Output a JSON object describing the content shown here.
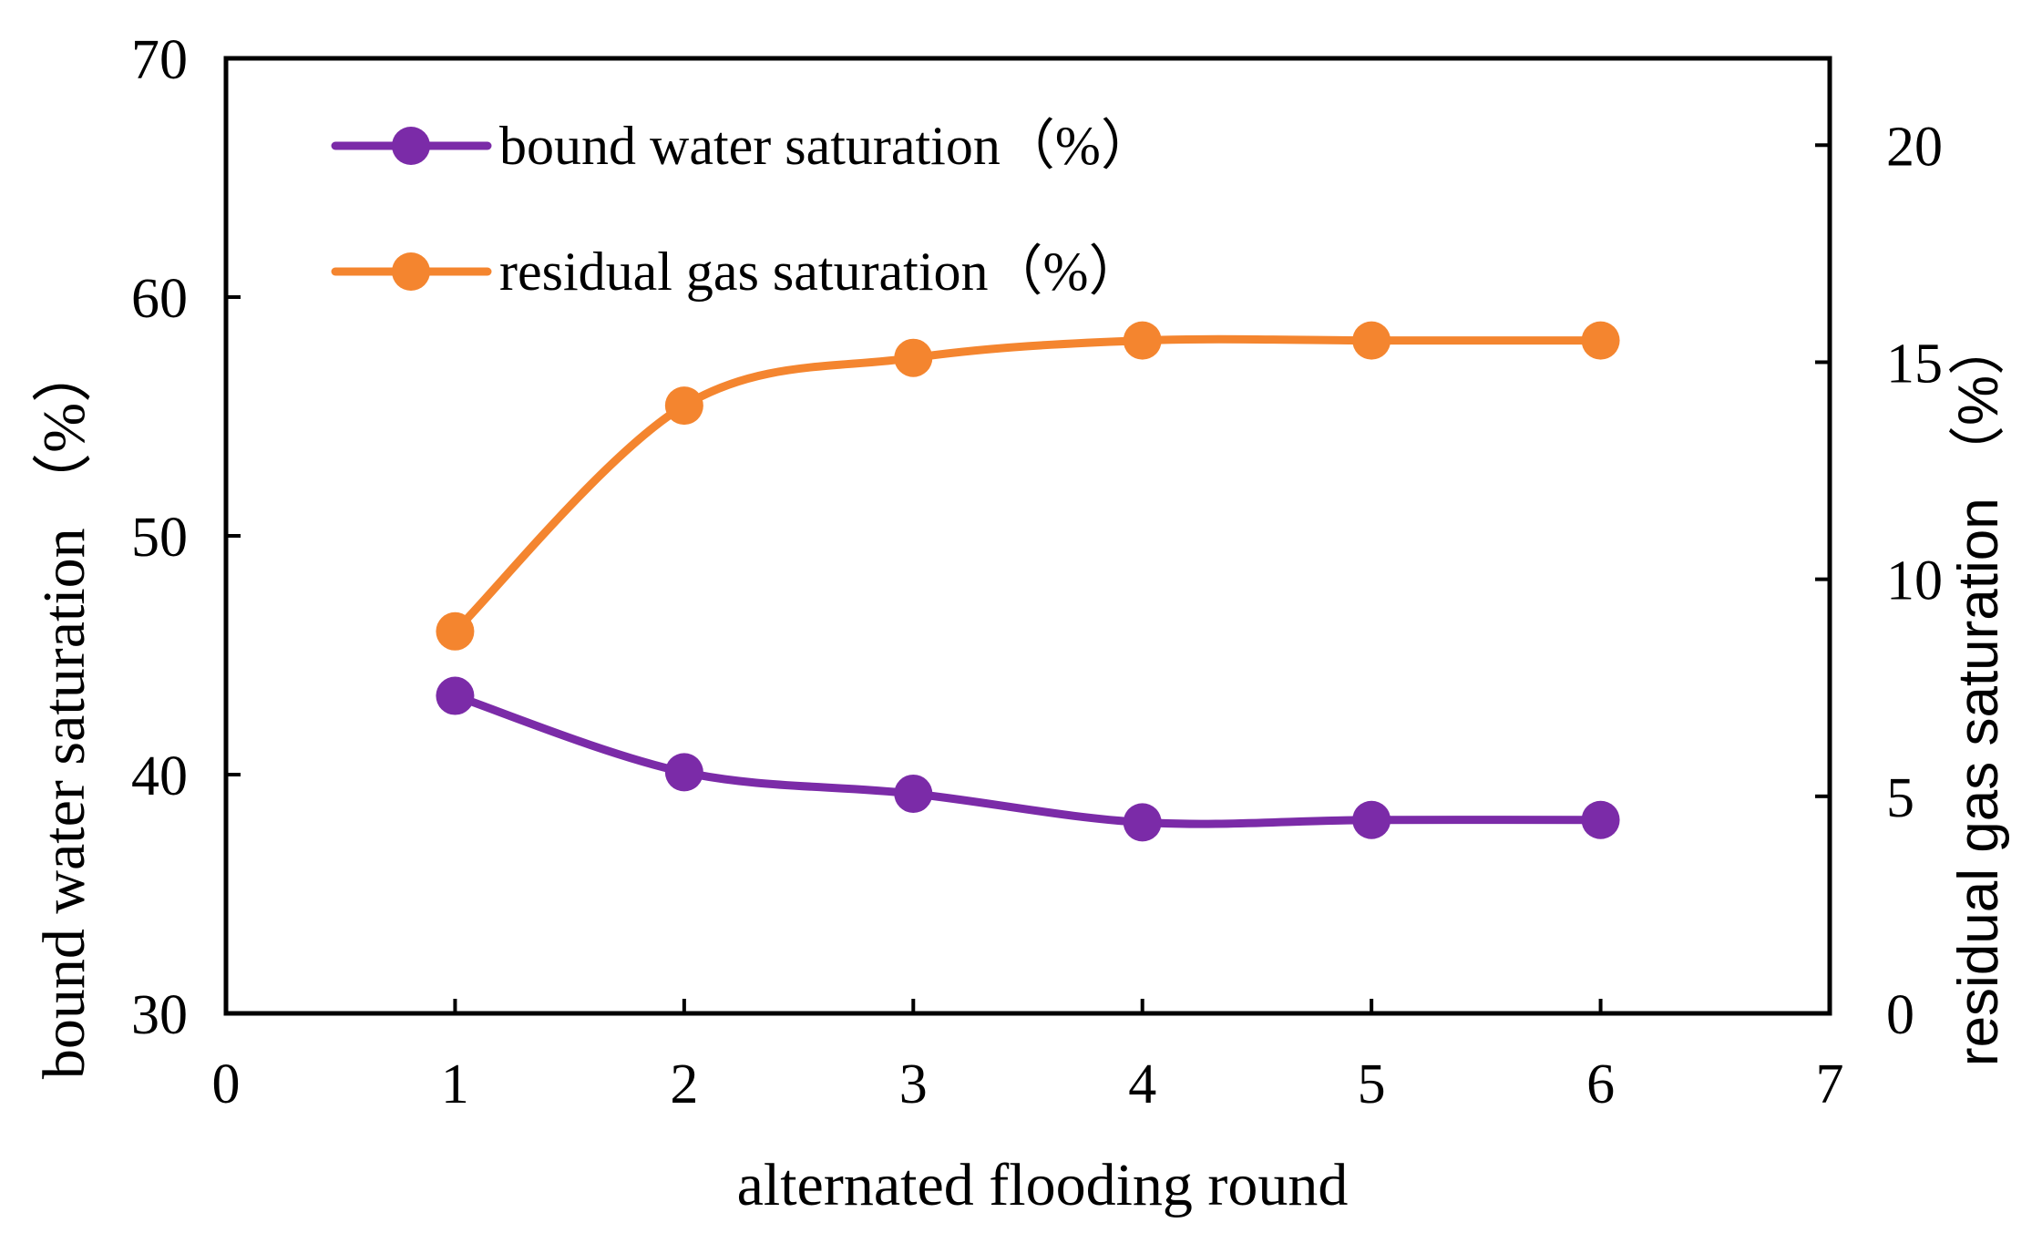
{
  "chart_data": {
    "type": "line",
    "title": "",
    "xlabel": "alternated flooding round",
    "ylabel": "bound water saturation （%）",
    "y2label": "residual gas saturation （%）",
    "xlim": [
      0,
      7
    ],
    "ylim": [
      30,
      70
    ],
    "y2lim": [
      0,
      22
    ],
    "x_ticks": [
      "0",
      "1",
      "2",
      "3",
      "4",
      "5",
      "6",
      "7"
    ],
    "y_ticks": [
      "30",
      "40",
      "50",
      "60",
      "70"
    ],
    "y2_ticks": [
      "0",
      "5",
      "10",
      "15",
      "20"
    ],
    "grid": false,
    "legend_position": "top-left",
    "x": [
      1,
      2,
      3,
      4,
      5,
      6
    ],
    "series": [
      {
        "name": "bound water saturation（%）",
        "axis": "left",
        "color": "#7B2BA8",
        "values": [
          43.3,
          40.1,
          39.2,
          38.0,
          38.1,
          38.1
        ]
      },
      {
        "name": "residual gas saturation（%）",
        "axis": "right",
        "color": "#F4852F",
        "values": [
          8.8,
          14.0,
          15.1,
          15.5,
          15.5,
          15.5
        ]
      }
    ]
  }
}
